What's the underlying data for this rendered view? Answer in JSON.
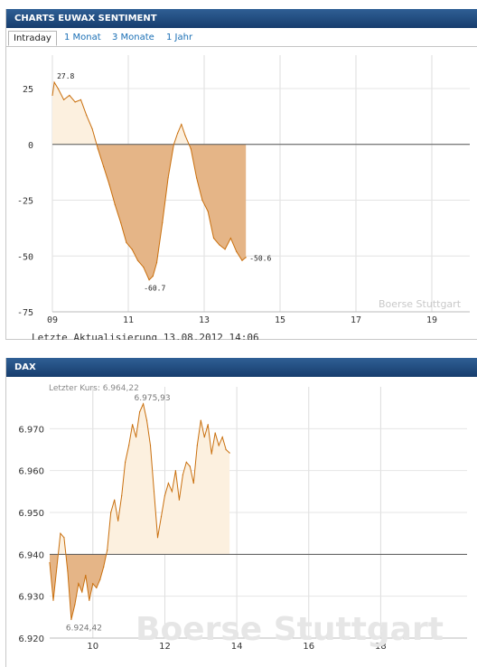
{
  "sentiment": {
    "title": "CHARTS EUWAX SENTIMENT",
    "tabs": [
      "Intraday",
      "1 Monat",
      "3 Monate",
      "1 Jahr"
    ],
    "footer": "Letzte Aktualisierung 13.08.2012 14:06",
    "watermark": "Boerse Stuttgart"
  },
  "dax": {
    "title": "DAX",
    "last_price_label": "Letzter Kurs: 6.964,22",
    "watermark": "Boerse Stuttgart"
  },
  "colors": {
    "header": "#1f4a7e",
    "line": "#d1760f",
    "fill_below": "#e5b587",
    "fill_above": "#fcf0df",
    "link": "#1a6fb5"
  },
  "chart_data": [
    {
      "type": "area",
      "title": "CHARTS EUWAX SENTIMENT",
      "x_ticks": [
        "09",
        "11",
        "13",
        "15",
        "17",
        "19"
      ],
      "y_ticks": [
        "25",
        "0",
        "-25",
        "-50",
        "-75"
      ],
      "xlim": [
        9,
        20
      ],
      "ylim": [
        -75,
        40
      ],
      "baseline": 0,
      "annotations": [
        {
          "label": "27.8",
          "x": 9.05,
          "y": 27.8
        },
        {
          "label": "-60.7",
          "x": 11.6,
          "y": -60.7
        },
        {
          "label": "-50.6",
          "x": 14.1,
          "y": -50.6
        }
      ],
      "series": [
        {
          "x": [
            9.0,
            9.05,
            9.15,
            9.3,
            9.45,
            9.6,
            9.75,
            9.9,
            10.05,
            10.2,
            10.35,
            10.5,
            10.65,
            10.8,
            10.95,
            11.1,
            11.25,
            11.4,
            11.55,
            11.65,
            11.75,
            11.9,
            12.05,
            12.2,
            12.3,
            12.4,
            12.5,
            12.65,
            12.8,
            12.95,
            13.1,
            13.25,
            13.4,
            13.55,
            13.7,
            13.85,
            14.0,
            14.1
          ],
          "y": [
            22,
            27.8,
            25,
            20,
            22,
            19,
            20,
            13,
            7,
            -2,
            -10,
            -18,
            -27,
            -35,
            -44,
            -47,
            -52,
            -55,
            -60.7,
            -59,
            -53,
            -35,
            -15,
            0,
            5,
            9,
            4,
            -2,
            -15,
            -25,
            -30,
            -42,
            -45,
            -47,
            -42,
            -48,
            -52,
            -50.6
          ]
        }
      ]
    },
    {
      "type": "area",
      "title": "DAX",
      "x_ticks": [
        "10",
        "12",
        "14",
        "16",
        "18"
      ],
      "y_ticks": [
        "6.970",
        "6.960",
        "6.950",
        "6.940",
        "6.930",
        "6.920"
      ],
      "xlim": [
        8.8,
        20.4
      ],
      "ylim": [
        6920,
        6980
      ],
      "baseline": 6940,
      "annotations": [
        {
          "label": "6.975,93",
          "x": 11.35,
          "y": 6975.93
        },
        {
          "label": "6.924,42",
          "x": 9.45,
          "y": 6924.42
        }
      ],
      "series": [
        {
          "x": [
            8.8,
            8.9,
            9.0,
            9.1,
            9.2,
            9.3,
            9.4,
            9.5,
            9.6,
            9.7,
            9.8,
            9.9,
            10.0,
            10.1,
            10.2,
            10.3,
            10.4,
            10.5,
            10.6,
            10.7,
            10.8,
            10.9,
            11.0,
            11.1,
            11.2,
            11.3,
            11.4,
            11.5,
            11.6,
            11.7,
            11.8,
            11.9,
            12.0,
            12.1,
            12.2,
            12.3,
            12.4,
            12.5,
            12.6,
            12.7,
            12.8,
            12.9,
            13.0,
            13.1,
            13.2,
            13.3,
            13.4,
            13.5,
            13.6,
            13.7,
            13.8
          ],
          "y": [
            6938,
            6929,
            6937,
            6945,
            6944,
            6936,
            6924.42,
            6928,
            6933,
            6931,
            6935,
            6929,
            6933,
            6932,
            6934,
            6937,
            6941,
            6950,
            6953,
            6948,
            6954,
            6962,
            6966,
            6971,
            6968,
            6974,
            6975.93,
            6972,
            6966,
            6955,
            6944,
            6949,
            6954,
            6957,
            6955,
            6960,
            6953,
            6959,
            6962,
            6961,
            6957,
            6966,
            6972,
            6968,
            6971,
            6964,
            6969,
            6966,
            6968,
            6965,
            6964.22
          ]
        }
      ]
    }
  ]
}
